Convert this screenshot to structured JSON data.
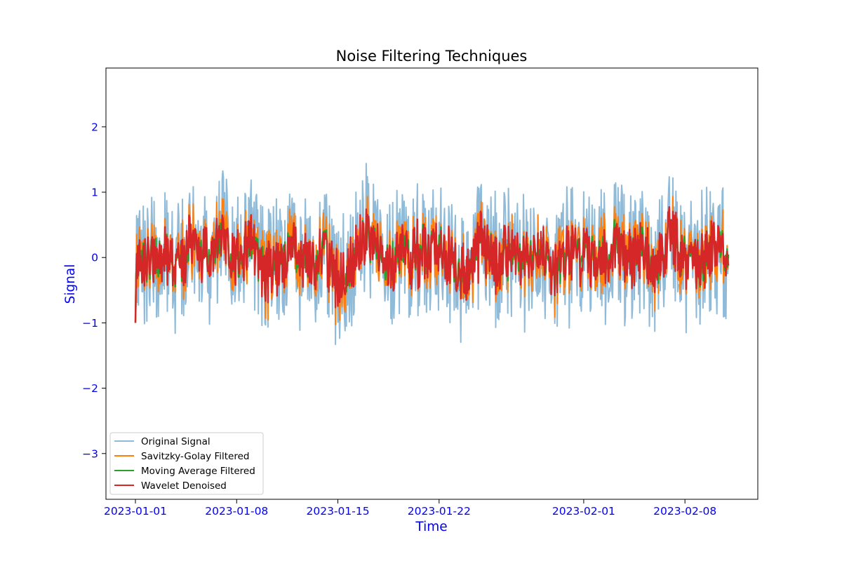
{
  "chart_data": {
    "type": "line",
    "title": "Noise Filtering Techniques",
    "xlabel": "Time",
    "ylabel": "Signal",
    "x_start": "2023-01-01",
    "x_end": "2023-02-11",
    "x_ticks": [
      "2023-01-01",
      "2023-01-08",
      "2023-01-15",
      "2023-01-22",
      "2023-02-01",
      "2023-02-08"
    ],
    "ylim": [
      -3.7,
      2.9
    ],
    "y_ticks": [
      -3,
      -2,
      -1,
      0,
      1,
      2
    ],
    "y_tick_labels": [
      "−3",
      "−2",
      "−1",
      "0",
      "1",
      "2"
    ],
    "grid": false,
    "legend_position": "lower-left",
    "series": [
      {
        "name": "Original Signal",
        "color": "#1f77b4",
        "alpha": 0.5,
        "stroke": 2,
        "y_at_days": [
          -1.0,
          0.1,
          0.5,
          -0.8,
          1.3,
          0.2,
          1.2,
          -0.4,
          0.7,
          -1.2,
          -0.3,
          0.3,
          -0.9,
          0.8,
          -1.8,
          -0.3,
          1.4,
          -0.5,
          0.2,
          -0.1,
          0.6,
          0.9,
          -0.6,
          -1.1,
          1.0,
          -0.4,
          0.3,
          -0.2,
          0.8,
          -1.3,
          0.1,
          0.5,
          -0.7,
          1.0,
          -0.2,
          0.4,
          -0.8,
          1.5,
          0.0,
          -0.5,
          0.9,
          0.3
        ],
        "amplitude": 1.0
      },
      {
        "name": "Savitzky-Golay Filtered",
        "color": "#ff7f0e",
        "alpha": 1.0,
        "stroke": 2,
        "y_at_days": [
          -1.0,
          0.1,
          0.5,
          -0.8,
          1.3,
          0.2,
          1.2,
          -0.4,
          0.7,
          -1.2,
          -0.3,
          0.3,
          -0.9,
          0.8,
          -1.8,
          -0.3,
          1.4,
          -0.5,
          0.2,
          -0.1,
          0.6,
          0.9,
          -0.6,
          -1.1,
          1.0,
          -0.4,
          0.3,
          -0.2,
          0.8,
          -1.3,
          0.1,
          0.5,
          -0.7,
          1.0,
          -0.2,
          0.4,
          -0.8,
          1.5,
          0.0,
          -0.5,
          0.9,
          0.3
        ],
        "amplitude": 0.55
      },
      {
        "name": "Moving Average Filtered",
        "color": "#2ca02c",
        "alpha": 1.0,
        "stroke": 2.4,
        "y_at_days": [
          -1.0,
          0.1,
          0.5,
          -0.8,
          1.3,
          0.2,
          1.2,
          -0.4,
          0.7,
          -1.2,
          -0.3,
          0.3,
          -0.9,
          0.8,
          -1.8,
          -0.3,
          1.4,
          -0.5,
          0.2,
          -0.1,
          0.6,
          0.9,
          -0.6,
          -1.1,
          1.0,
          -0.4,
          0.3,
          -0.2,
          0.8,
          -1.3,
          0.1,
          0.5,
          -0.7,
          1.0,
          -0.2,
          0.4,
          -0.8,
          1.5,
          0.0,
          -0.5,
          0.9,
          0.3
        ],
        "amplitude": 0.3
      },
      {
        "name": "Wavelet Denoised",
        "color": "#d62728",
        "alpha": 1.0,
        "stroke": 2.4,
        "y_at_days": [
          -1.0,
          0.1,
          0.5,
          -0.8,
          1.3,
          0.2,
          1.2,
          -0.4,
          0.7,
          -1.2,
          -0.3,
          0.3,
          -0.9,
          0.8,
          -1.8,
          -0.3,
          1.4,
          -0.5,
          0.2,
          -0.1,
          0.6,
          0.9,
          -0.6,
          -1.1,
          1.0,
          -0.4,
          0.3,
          -0.2,
          0.8,
          -1.3,
          0.1,
          0.5,
          -0.7,
          1.0,
          -0.2,
          0.4,
          -0.8,
          1.5,
          0.0,
          -0.5,
          0.9,
          0.3
        ],
        "amplitude": 0.42
      }
    ]
  }
}
